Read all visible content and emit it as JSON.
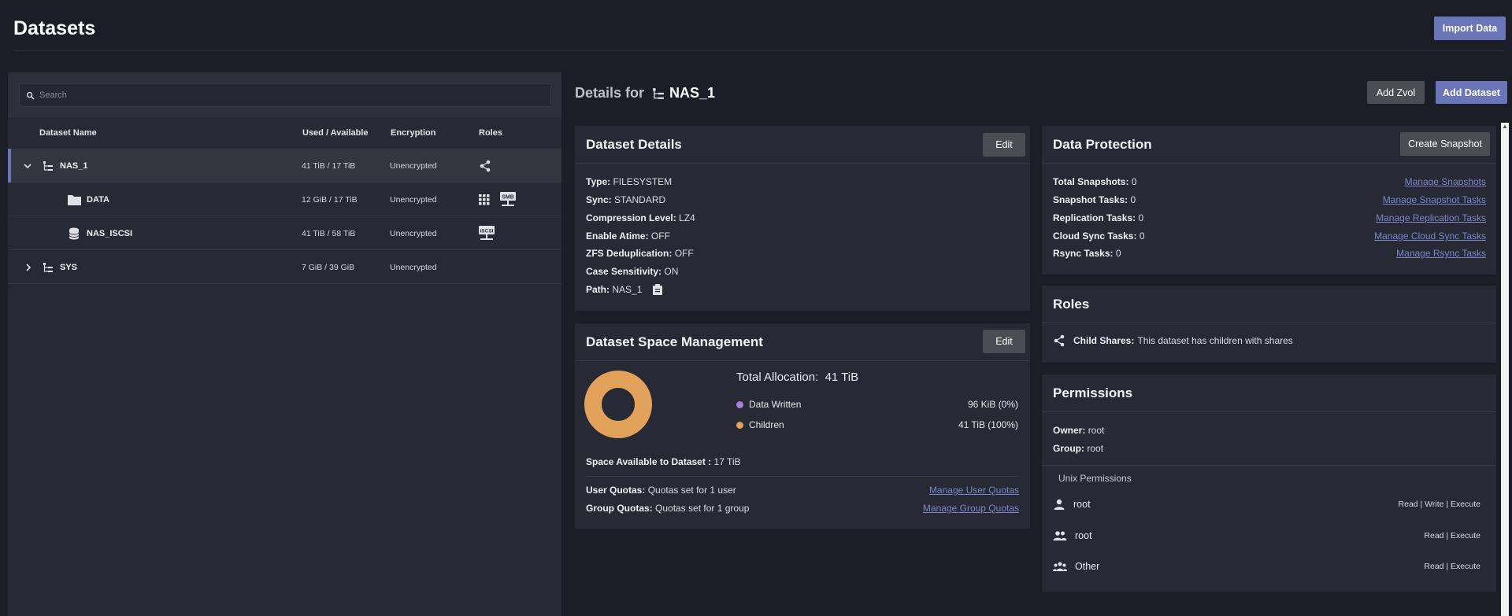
{
  "header": {
    "title": "Datasets",
    "import_label": "Import Data"
  },
  "search": {
    "placeholder": "Search"
  },
  "table": {
    "columns": [
      "Dataset Name",
      "Used / Available",
      "Encryption",
      "Roles"
    ],
    "rows": [
      {
        "name": "NAS_1",
        "usage": "41 TiB / 17 TiB",
        "encryption": "Unencrypted",
        "roles": [
          "share-icon"
        ]
      },
      {
        "name": "DATA",
        "usage": "12 GiB / 17 TiB",
        "encryption": "Unencrypted",
        "roles": [
          "apps-icon",
          "smb-share-icon"
        ],
        "smb_badge": "SMB"
      },
      {
        "name": "NAS_ISCSI",
        "usage": "41 TiB / 58 TiB",
        "encryption": "Unencrypted",
        "roles": [
          "iscsi-share-icon"
        ],
        "iscsi_badge": "iSCSI"
      },
      {
        "name": "SYS",
        "usage": "7 GiB / 39 GiB",
        "encryption": "Unencrypted",
        "roles": []
      }
    ]
  },
  "details": {
    "prefix": "Details for",
    "dataset": "NAS_1",
    "add_zvol_label": "Add Zvol",
    "add_dataset_label": "Add Dataset"
  },
  "dataset_details": {
    "title": "Dataset Details",
    "edit_label": "Edit",
    "fields": [
      {
        "label": "Type:",
        "value": "FILESYSTEM"
      },
      {
        "label": "Sync:",
        "value": "STANDARD"
      },
      {
        "label": "Compression Level:",
        "value": "LZ4"
      },
      {
        "label": "Enable Atime:",
        "value": "OFF"
      },
      {
        "label": "ZFS Deduplication:",
        "value": "OFF"
      },
      {
        "label": "Case Sensitivity:",
        "value": "ON"
      },
      {
        "label": "Path:",
        "value": "NAS_1"
      }
    ]
  },
  "space": {
    "title": "Dataset Space Management",
    "edit_label": "Edit",
    "total_label": "Total Allocation:",
    "total_value": "41 TiB",
    "legend": [
      {
        "label": "Data Written",
        "value": "96 KiB (0%)",
        "color": "#a77fe0"
      },
      {
        "label": "Children",
        "value": "41 TiB (100%)",
        "color": "#e2a25a"
      }
    ],
    "chart_data": {
      "type": "pie",
      "categories": [
        "Data Written",
        "Children"
      ],
      "values": [
        0,
        100
      ]
    },
    "available_label": "Space Available to Dataset :",
    "available_value": "17 TiB",
    "user_quotas_label": "User Quotas:",
    "user_quotas_value": "Quotas set for 1 user",
    "user_quotas_link": "Manage User Quotas",
    "group_quotas_label": "Group Quotas:",
    "group_quotas_value": "Quotas set for 1 group",
    "group_quotas_link": "Manage Group Quotas"
  },
  "protection": {
    "title": "Data Protection",
    "create_label": "Create Snapshot",
    "rows": [
      {
        "label": "Total Snapshots:",
        "value": "0",
        "link": "Manage Snapshots"
      },
      {
        "label": "Snapshot Tasks:",
        "value": "0",
        "link": "Manage Snapshot Tasks"
      },
      {
        "label": "Replication Tasks:",
        "value": "0",
        "link": "Manage Replication Tasks"
      },
      {
        "label": "Cloud Sync Tasks:",
        "value": "0",
        "link": "Manage Cloud Sync Tasks"
      },
      {
        "label": "Rsync Tasks:",
        "value": "0",
        "link": "Manage Rsync Tasks"
      }
    ]
  },
  "roles": {
    "title": "Roles",
    "label": "Child Shares:",
    "value": "This dataset has children with shares"
  },
  "permissions": {
    "title": "Permissions",
    "owner_label": "Owner:",
    "owner_value": "root",
    "group_label": "Group:",
    "group_value": "root",
    "unix_label": "Unix Permissions",
    "entries": [
      {
        "name": "root",
        "perms": "Read | Write | Execute",
        "icon": "user-icon"
      },
      {
        "name": "root",
        "perms": "Read | Execute",
        "icon": "group-icon"
      },
      {
        "name": "Other",
        "perms": "Read | Execute",
        "icon": "others-icon"
      }
    ]
  }
}
